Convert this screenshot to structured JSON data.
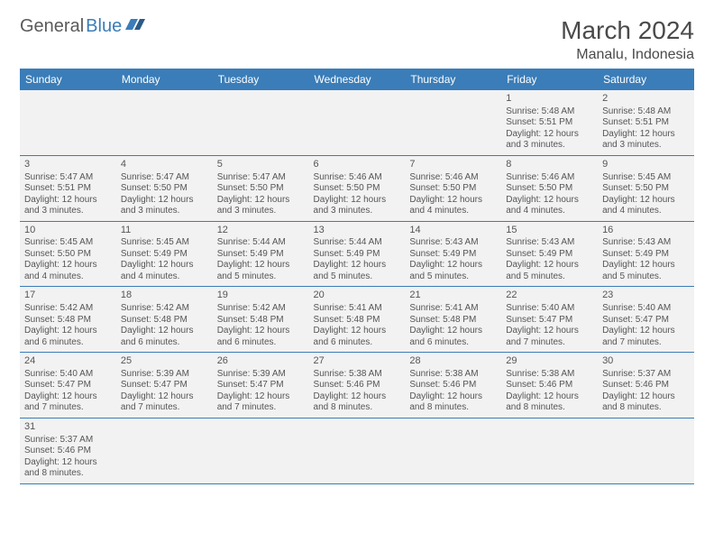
{
  "logo": {
    "part1": "General",
    "part2": "Blue"
  },
  "title": "March 2024",
  "location": "Manalu, Indonesia",
  "colors": {
    "header_bg": "#3a7db8",
    "header_text": "#ffffff",
    "cell_bg": "#f2f2f2",
    "border": "#3a7db8",
    "text": "#555555",
    "title_text": "#4a4a4a"
  },
  "dayHeaders": [
    "Sunday",
    "Monday",
    "Tuesday",
    "Wednesday",
    "Thursday",
    "Friday",
    "Saturday"
  ],
  "weeks": [
    [
      null,
      null,
      null,
      null,
      null,
      {
        "n": "1",
        "sr": "Sunrise: 5:48 AM",
        "ss": "Sunset: 5:51 PM",
        "dl": "Daylight: 12 hours and 3 minutes."
      },
      {
        "n": "2",
        "sr": "Sunrise: 5:48 AM",
        "ss": "Sunset: 5:51 PM",
        "dl": "Daylight: 12 hours and 3 minutes."
      }
    ],
    [
      {
        "n": "3",
        "sr": "Sunrise: 5:47 AM",
        "ss": "Sunset: 5:51 PM",
        "dl": "Daylight: 12 hours and 3 minutes."
      },
      {
        "n": "4",
        "sr": "Sunrise: 5:47 AM",
        "ss": "Sunset: 5:50 PM",
        "dl": "Daylight: 12 hours and 3 minutes."
      },
      {
        "n": "5",
        "sr": "Sunrise: 5:47 AM",
        "ss": "Sunset: 5:50 PM",
        "dl": "Daylight: 12 hours and 3 minutes."
      },
      {
        "n": "6",
        "sr": "Sunrise: 5:46 AM",
        "ss": "Sunset: 5:50 PM",
        "dl": "Daylight: 12 hours and 3 minutes."
      },
      {
        "n": "7",
        "sr": "Sunrise: 5:46 AM",
        "ss": "Sunset: 5:50 PM",
        "dl": "Daylight: 12 hours and 4 minutes."
      },
      {
        "n": "8",
        "sr": "Sunrise: 5:46 AM",
        "ss": "Sunset: 5:50 PM",
        "dl": "Daylight: 12 hours and 4 minutes."
      },
      {
        "n": "9",
        "sr": "Sunrise: 5:45 AM",
        "ss": "Sunset: 5:50 PM",
        "dl": "Daylight: 12 hours and 4 minutes."
      }
    ],
    [
      {
        "n": "10",
        "sr": "Sunrise: 5:45 AM",
        "ss": "Sunset: 5:50 PM",
        "dl": "Daylight: 12 hours and 4 minutes."
      },
      {
        "n": "11",
        "sr": "Sunrise: 5:45 AM",
        "ss": "Sunset: 5:49 PM",
        "dl": "Daylight: 12 hours and 4 minutes."
      },
      {
        "n": "12",
        "sr": "Sunrise: 5:44 AM",
        "ss": "Sunset: 5:49 PM",
        "dl": "Daylight: 12 hours and 5 minutes."
      },
      {
        "n": "13",
        "sr": "Sunrise: 5:44 AM",
        "ss": "Sunset: 5:49 PM",
        "dl": "Daylight: 12 hours and 5 minutes."
      },
      {
        "n": "14",
        "sr": "Sunrise: 5:43 AM",
        "ss": "Sunset: 5:49 PM",
        "dl": "Daylight: 12 hours and 5 minutes."
      },
      {
        "n": "15",
        "sr": "Sunrise: 5:43 AM",
        "ss": "Sunset: 5:49 PM",
        "dl": "Daylight: 12 hours and 5 minutes."
      },
      {
        "n": "16",
        "sr": "Sunrise: 5:43 AM",
        "ss": "Sunset: 5:49 PM",
        "dl": "Daylight: 12 hours and 5 minutes."
      }
    ],
    [
      {
        "n": "17",
        "sr": "Sunrise: 5:42 AM",
        "ss": "Sunset: 5:48 PM",
        "dl": "Daylight: 12 hours and 6 minutes."
      },
      {
        "n": "18",
        "sr": "Sunrise: 5:42 AM",
        "ss": "Sunset: 5:48 PM",
        "dl": "Daylight: 12 hours and 6 minutes."
      },
      {
        "n": "19",
        "sr": "Sunrise: 5:42 AM",
        "ss": "Sunset: 5:48 PM",
        "dl": "Daylight: 12 hours and 6 minutes."
      },
      {
        "n": "20",
        "sr": "Sunrise: 5:41 AM",
        "ss": "Sunset: 5:48 PM",
        "dl": "Daylight: 12 hours and 6 minutes."
      },
      {
        "n": "21",
        "sr": "Sunrise: 5:41 AM",
        "ss": "Sunset: 5:48 PM",
        "dl": "Daylight: 12 hours and 6 minutes."
      },
      {
        "n": "22",
        "sr": "Sunrise: 5:40 AM",
        "ss": "Sunset: 5:47 PM",
        "dl": "Daylight: 12 hours and 7 minutes."
      },
      {
        "n": "23",
        "sr": "Sunrise: 5:40 AM",
        "ss": "Sunset: 5:47 PM",
        "dl": "Daylight: 12 hours and 7 minutes."
      }
    ],
    [
      {
        "n": "24",
        "sr": "Sunrise: 5:40 AM",
        "ss": "Sunset: 5:47 PM",
        "dl": "Daylight: 12 hours and 7 minutes."
      },
      {
        "n": "25",
        "sr": "Sunrise: 5:39 AM",
        "ss": "Sunset: 5:47 PM",
        "dl": "Daylight: 12 hours and 7 minutes."
      },
      {
        "n": "26",
        "sr": "Sunrise: 5:39 AM",
        "ss": "Sunset: 5:47 PM",
        "dl": "Daylight: 12 hours and 7 minutes."
      },
      {
        "n": "27",
        "sr": "Sunrise: 5:38 AM",
        "ss": "Sunset: 5:46 PM",
        "dl": "Daylight: 12 hours and 8 minutes."
      },
      {
        "n": "28",
        "sr": "Sunrise: 5:38 AM",
        "ss": "Sunset: 5:46 PM",
        "dl": "Daylight: 12 hours and 8 minutes."
      },
      {
        "n": "29",
        "sr": "Sunrise: 5:38 AM",
        "ss": "Sunset: 5:46 PM",
        "dl": "Daylight: 12 hours and 8 minutes."
      },
      {
        "n": "30",
        "sr": "Sunrise: 5:37 AM",
        "ss": "Sunset: 5:46 PM",
        "dl": "Daylight: 12 hours and 8 minutes."
      }
    ],
    [
      {
        "n": "31",
        "sr": "Sunrise: 5:37 AM",
        "ss": "Sunset: 5:46 PM",
        "dl": "Daylight: 12 hours and 8 minutes."
      },
      null,
      null,
      null,
      null,
      null,
      null
    ]
  ]
}
